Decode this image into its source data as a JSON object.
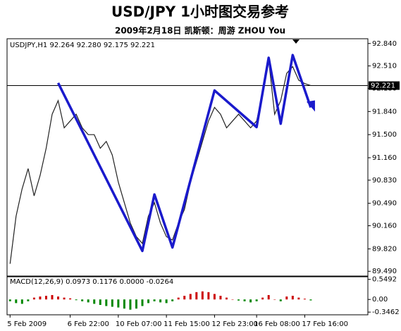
{
  "chart_data": [
    {
      "type": "line",
      "title": "USD/JPY 1小时图交易参考",
      "subtitle": "2009年2月18日 凯斯顿：周游 ZHOU You",
      "header": "USDJPY,H1 92.264 92.280 92.175 92.221",
      "current_price": 92.221,
      "categories": [
        "5 Feb 2009",
        null,
        null,
        null,
        null,
        null,
        null,
        null,
        null,
        null,
        "6 Feb 22:00",
        null,
        null,
        null,
        null,
        null,
        null,
        null,
        "10 Feb 07:00",
        null,
        null,
        null,
        null,
        null,
        null,
        null,
        "11 Feb 15:00",
        null,
        null,
        null,
        null,
        null,
        null,
        null,
        "12 Feb 23:00",
        null,
        null,
        null,
        null,
        null,
        null,
        "16 Feb 08:00",
        null,
        null,
        null,
        null,
        null,
        null,
        null,
        "17 Feb 16:00",
        null,
        null,
        null,
        null,
        null,
        null,
        null,
        null,
        null,
        null
      ],
      "series": [
        {
          "name": "USDJPY,H1",
          "color": "#222222",
          "values": [
            89.6,
            90.3,
            90.7,
            91.0,
            90.6,
            90.9,
            91.3,
            91.8,
            92.0,
            91.6,
            91.7,
            91.8,
            91.6,
            91.5,
            91.5,
            91.3,
            91.4,
            91.2,
            90.8,
            90.5,
            90.2,
            90.0,
            89.9,
            90.3,
            90.5,
            90.2,
            90.0,
            89.95,
            90.2,
            90.4,
            90.8,
            91.1,
            91.4,
            91.7,
            91.9,
            91.8,
            91.6,
            91.7,
            91.8,
            91.7,
            91.6,
            91.7,
            92.1,
            92.6,
            91.8,
            92.0,
            92.4,
            92.5,
            92.3,
            92.25,
            92.221,
            null,
            null,
            null,
            null,
            null,
            null,
            null,
            null,
            null
          ]
        }
      ],
      "zigzag": {
        "color": "#1a1acc",
        "x": [
          8,
          22,
          24,
          27,
          34,
          41,
          43,
          45,
          47,
          50
        ],
        "values": [
          92.26,
          89.79,
          90.62,
          89.84,
          92.15,
          91.61,
          92.63,
          91.66,
          92.67,
          91.9
        ]
      },
      "ylim": [
        89.42,
        92.91
      ],
      "yticks": [
        {
          "value": 92.84,
          "label": "92.840"
        },
        {
          "value": 92.51,
          "label": "92.510"
        },
        {
          "value": 92.18,
          "label": "92.180"
        },
        {
          "value": 91.84,
          "label": "91.840"
        },
        {
          "value": 91.5,
          "label": "91.500"
        },
        {
          "value": 91.16,
          "label": "91.160"
        },
        {
          "value": 90.83,
          "label": "90.830"
        },
        {
          "value": 90.49,
          "label": "90.490"
        },
        {
          "value": 90.16,
          "label": "90.160"
        },
        {
          "value": 89.82,
          "label": "89.820"
        },
        {
          "value": 89.49,
          "label": "89.490"
        }
      ]
    },
    {
      "type": "bar",
      "title": "MACD(12,26,9) 0.0973 0.1176 0.0000 -0.0264",
      "up_color": "#cc0000",
      "down_color": "#008800",
      "values": [
        -0.05,
        -0.1,
        -0.12,
        -0.05,
        0.05,
        0.08,
        0.1,
        0.12,
        0.08,
        0.05,
        0.03,
        -0.02,
        -0.05,
        -0.08,
        -0.12,
        -0.15,
        -0.18,
        -0.2,
        -0.22,
        -0.25,
        -0.28,
        -0.25,
        -0.18,
        -0.1,
        -0.05,
        -0.08,
        -0.1,
        -0.05,
        0.05,
        0.1,
        0.15,
        0.2,
        0.22,
        0.2,
        0.15,
        0.1,
        0.05,
        0.0,
        -0.03,
        -0.05,
        -0.08,
        -0.05,
        0.05,
        0.12,
        0.0,
        -0.05,
        0.08,
        0.1,
        0.05,
        0.02,
        -0.0264,
        null,
        null,
        null,
        null,
        null,
        null,
        null,
        null,
        null
      ],
      "ylim": [
        -0.42,
        0.62
      ],
      "yticks": [
        0.5492,
        {
          "value": 0,
          "label": "0.00"
        },
        -0.3462
      ]
    }
  ]
}
